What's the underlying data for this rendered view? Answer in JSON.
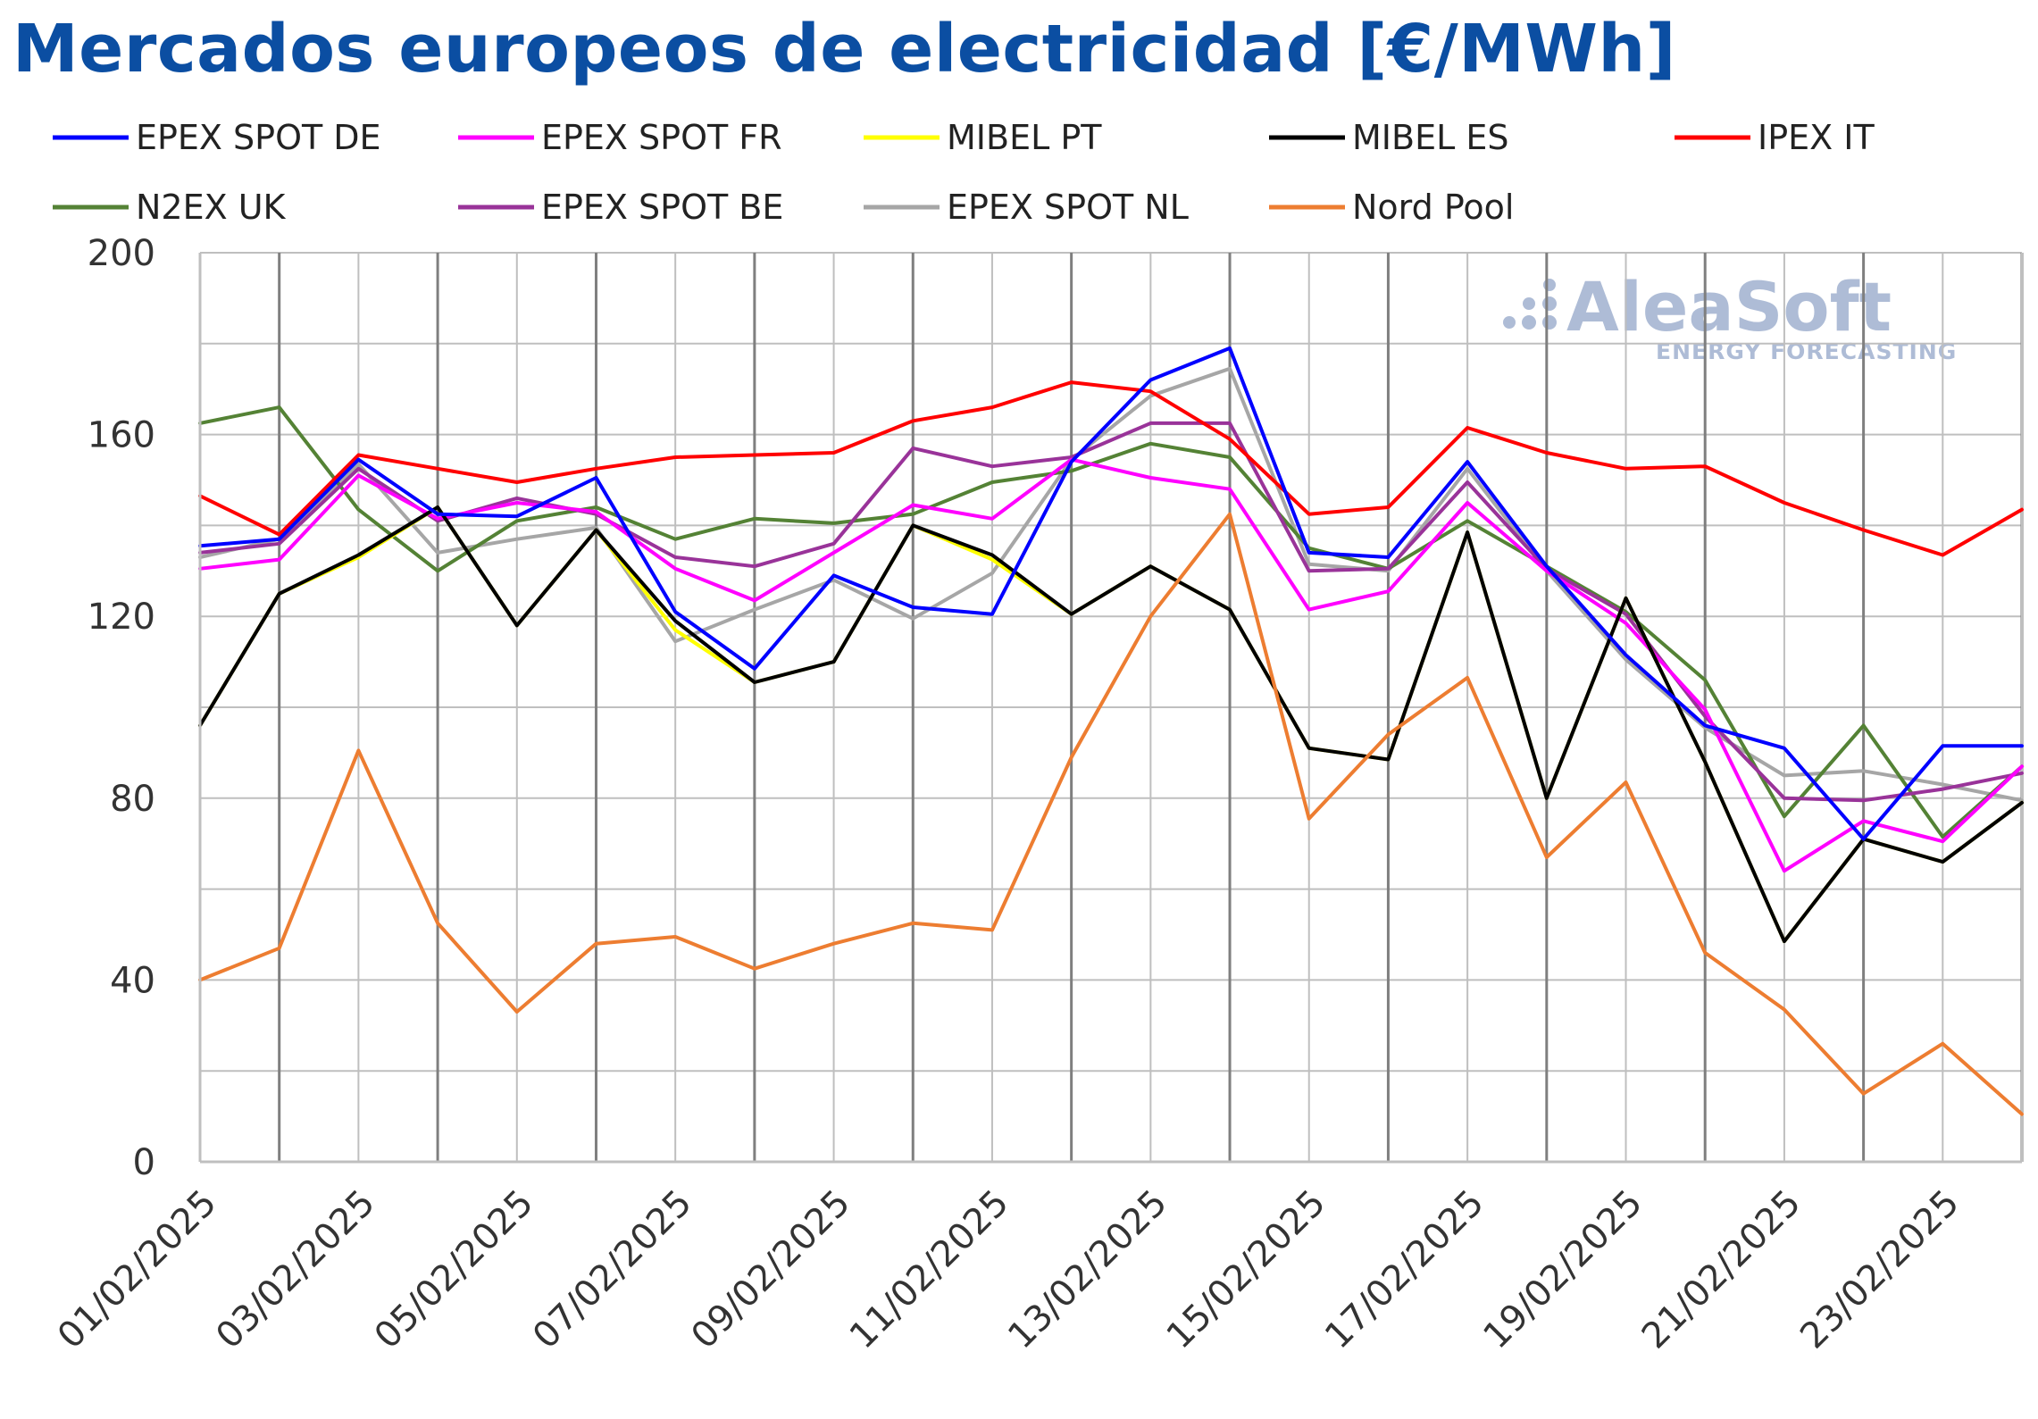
{
  "chart_data": {
    "type": "line",
    "title": "Mercados europeos de electricidad [€/MWh]",
    "xlabel": "",
    "ylabel": "",
    "ylim": [
      0,
      200
    ],
    "yticks": [
      0,
      40,
      80,
      120,
      160,
      200
    ],
    "grid": true,
    "legend_position": "top",
    "x": [
      "01/02/2025",
      "02/02/2025",
      "03/02/2025",
      "04/02/2025",
      "05/02/2025",
      "06/02/2025",
      "07/02/2025",
      "08/02/2025",
      "09/02/2025",
      "10/02/2025",
      "11/02/2025",
      "12/02/2025",
      "13/02/2025",
      "14/02/2025",
      "15/02/2025",
      "16/02/2025",
      "17/02/2025",
      "18/02/2025",
      "19/02/2025",
      "20/02/2025",
      "21/02/2025",
      "22/02/2025",
      "23/02/2025",
      "24/02/2025"
    ],
    "xtick_labels": [
      "01/02/2025",
      "03/02/2025",
      "05/02/2025",
      "07/02/2025",
      "09/02/2025",
      "11/02/2025",
      "13/02/2025",
      "15/02/2025",
      "17/02/2025",
      "19/02/2025",
      "21/02/2025",
      "23/02/2025"
    ],
    "series": [
      {
        "name": "EPEX SPOT DE",
        "color": "#0000ff",
        "values": [
          135.5,
          137,
          154.5,
          142.5,
          142,
          150.5,
          121,
          108.5,
          129,
          122,
          120.5,
          154,
          172,
          179,
          134,
          133,
          154,
          131,
          111.5,
          96,
          91,
          71,
          91.5,
          91.5
        ]
      },
      {
        "name": "EPEX SPOT FR",
        "color": "#ff00ff",
        "values": [
          130.5,
          132.5,
          151,
          141.5,
          145,
          143,
          130.5,
          123.5,
          134,
          144.5,
          141.5,
          154.5,
          150.5,
          148,
          121.5,
          125.5,
          145,
          130,
          118.5,
          99.5,
          64,
          75,
          70.5,
          87
        ]
      },
      {
        "name": "MIBEL PT",
        "color": "#ffff00",
        "values": [
          96,
          125,
          133,
          144,
          118,
          139,
          117,
          105.5,
          110,
          140,
          132.5,
          120.5,
          131,
          121.5,
          91,
          88.5,
          138.5,
          80,
          124,
          88,
          48.5,
          71,
          66,
          79
        ]
      },
      {
        "name": "MIBEL ES",
        "color": "#000000",
        "values": [
          96,
          125,
          133.5,
          144,
          118,
          139,
          119,
          105.5,
          110,
          140,
          133.5,
          120.5,
          131,
          121.5,
          91,
          88.5,
          138.5,
          80,
          124,
          88,
          48.5,
          71,
          66,
          79
        ]
      },
      {
        "name": "IPEX IT",
        "color": "#ff0000",
        "values": [
          146.5,
          138,
          155.5,
          152.5,
          149.5,
          152.5,
          155,
          155.5,
          156,
          163,
          166,
          171.5,
          169.5,
          159,
          142.5,
          144,
          161.5,
          156,
          152.5,
          153,
          145,
          139,
          133.5,
          143.5
        ]
      },
      {
        "name": "N2EX UK",
        "color": "#548235",
        "values": [
          162.5,
          166,
          143.5,
          130,
          141,
          144,
          137,
          141.5,
          140.5,
          142.5,
          149.5,
          152,
          158,
          155,
          135,
          130.5,
          141,
          131,
          121,
          106,
          76,
          96,
          71.5,
          87
        ]
      },
      {
        "name": "EPEX SPOT BE",
        "color": "#993399",
        "values": [
          134,
          136,
          152.5,
          141,
          146,
          142.5,
          133,
          131,
          136,
          157,
          153,
          155,
          162.5,
          162.5,
          130,
          130.5,
          149.5,
          130.5,
          120.5,
          98,
          80,
          79.5,
          82,
          85.5
        ]
      },
      {
        "name": "EPEX SPOT NL",
        "color": "#a6a6a6",
        "values": [
          133,
          137,
          153.5,
          134,
          137,
          139.5,
          114.5,
          121.5,
          128,
          119.5,
          129.5,
          154.5,
          168.5,
          174.5,
          131.5,
          130,
          152.5,
          130,
          110.5,
          95.5,
          85,
          86,
          83,
          79.5
        ]
      },
      {
        "name": "Nord Pool",
        "color": "#ed7d31",
        "values": [
          40,
          47,
          90.5,
          52.5,
          33,
          48,
          49.5,
          42.5,
          48,
          52.5,
          51,
          89,
          120,
          142.5,
          75.5,
          94,
          106.5,
          67,
          83.5,
          46,
          33.5,
          15,
          26,
          10.5
        ]
      }
    ]
  },
  "watermark": {
    "brand": "AleaSoft",
    "tagline": "ENERGY FORECASTING"
  }
}
